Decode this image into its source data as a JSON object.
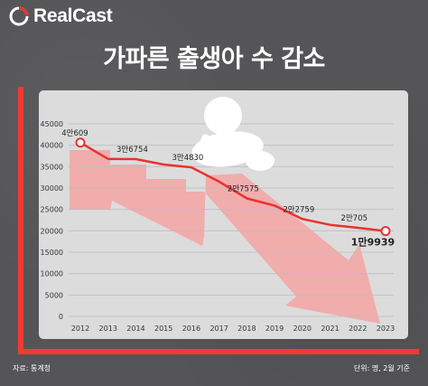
{
  "header": {
    "logo_text": "RealCast",
    "logo_icon": "realcast-circle-logo-icon",
    "title": "가파른 출생아 수 감소"
  },
  "footer": {
    "source": "자료: 통계청",
    "unit": "단위: 명, 2월 기준"
  },
  "colors": {
    "background": "#555557",
    "panel": "#dcdcdc",
    "line": "#e8332f",
    "arrow": "#ff8c8c",
    "axis_accent": "#f23a33"
  },
  "illustration": "crawling-baby-icon",
  "chart_data": {
    "type": "line",
    "title": "가파른 출생아 수 감소",
    "xlabel": "",
    "ylabel": "",
    "x": [
      "2012",
      "2013",
      "2014",
      "2015",
      "2016",
      "2017",
      "2018",
      "2019",
      "2020",
      "2021",
      "2022",
      "2023"
    ],
    "series": [
      {
        "values": [
          40609,
          36800,
          36754,
          35500,
          34830,
          31500,
          27575,
          25900,
          22759,
          21400,
          20705,
          19939
        ]
      }
    ],
    "labels": [
      {
        "x": "2012",
        "text": "4만609"
      },
      {
        "x": "2014",
        "text": "3만6754"
      },
      {
        "x": "2016",
        "text": "3만4830"
      },
      {
        "x": "2018",
        "text": "2만7575"
      },
      {
        "x": "2020",
        "text": "2만2759"
      },
      {
        "x": "2022",
        "text": "2만705"
      },
      {
        "x": "2023",
        "text": "1만9939"
      }
    ],
    "yticks": [
      0,
      5000,
      10000,
      15000,
      20000,
      25000,
      30000,
      35000,
      40000,
      45000
    ],
    "ylim": [
      0,
      45000
    ],
    "grid": "horizontal",
    "legend": "none"
  }
}
